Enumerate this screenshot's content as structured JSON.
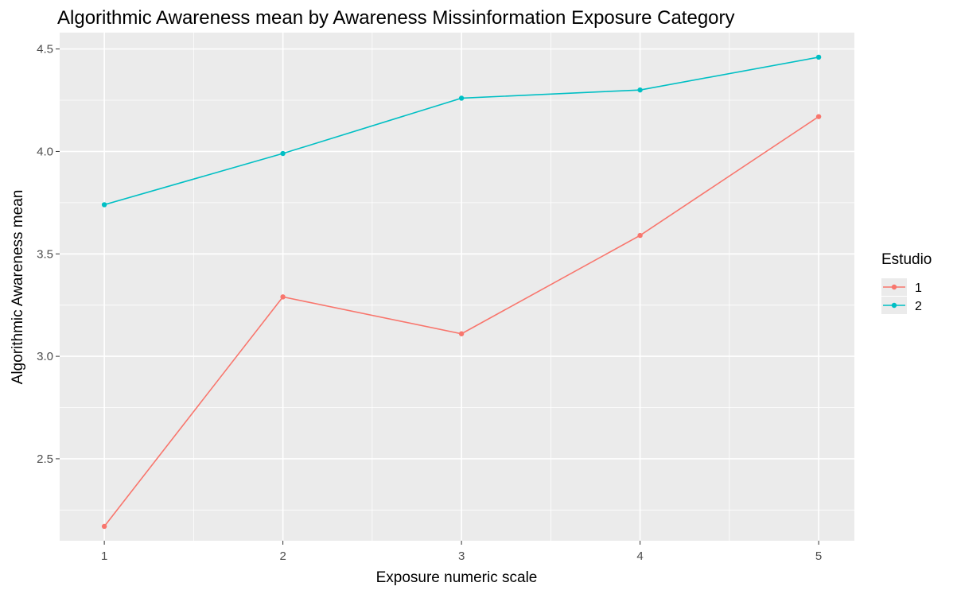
{
  "chart_data": {
    "type": "line",
    "title": "Algorithmic Awareness mean by Awareness Missinformation Exposure Category",
    "xlabel": "Exposure numeric scale",
    "ylabel": "Algorithmic Awareness mean",
    "x": [
      1,
      2,
      3,
      4,
      5
    ],
    "x_ticks": [
      "1",
      "2",
      "3",
      "4",
      "5"
    ],
    "y_ticks": [
      "2.5",
      "3.0",
      "3.5",
      "4.0",
      "4.5"
    ],
    "xlim": [
      0.75,
      5.2
    ],
    "ylim": [
      2.1,
      4.58
    ],
    "grid": true,
    "legend": {
      "title": "Estudio",
      "position": "right"
    },
    "series": [
      {
        "name": "1",
        "color": "#F8766D",
        "values": [
          2.17,
          3.29,
          3.11,
          3.59,
          4.17
        ]
      },
      {
        "name": "2",
        "color": "#00BFC4",
        "values": [
          3.74,
          3.99,
          4.26,
          4.3,
          4.46
        ]
      }
    ]
  }
}
